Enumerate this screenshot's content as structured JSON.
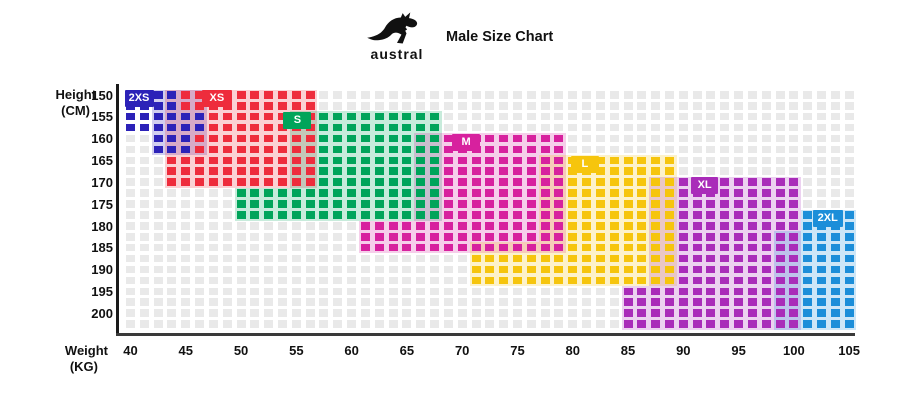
{
  "header": {
    "brand": "austral",
    "title": "Male Size Chart"
  },
  "axes": {
    "y_title_line1": "Height",
    "y_title_line2": "(CM)",
    "x_title_line1": "Weight",
    "x_title_line2": "(KG)",
    "y_ticks": [
      "150",
      "155",
      "160",
      "165",
      "170",
      "175",
      "180",
      "185",
      "190",
      "195",
      "200"
    ],
    "x_ticks": [
      "40",
      "45",
      "50",
      "55",
      "60",
      "65",
      "70",
      "75",
      "80",
      "85",
      "90",
      "95",
      "100",
      "105"
    ]
  },
  "grid": {
    "cols": 53,
    "rows": 22,
    "empty_color": "#e9e9e9",
    "tint_alpha": 0.22
  },
  "chart_data": {
    "type": "heatmap",
    "title": "Male Size Chart",
    "xlabel": "Weight (KG)",
    "ylabel": "Height (CM)",
    "x_range": [
      40,
      105
    ],
    "y_range": [
      150,
      200
    ],
    "legend_position": "inline-labels",
    "grid": "dot-matrix",
    "series": [
      {
        "name": "2XS",
        "color": "#2c22b8",
        "weight_kg": [
          40,
          47
        ],
        "height_cm": [
          150,
          165
        ]
      },
      {
        "name": "XS",
        "color": "#ee2c3c",
        "weight_kg": [
          44,
          57
        ],
        "height_cm": [
          150,
          172
        ]
      },
      {
        "name": "S",
        "color": "#00a45a",
        "weight_kg": [
          50,
          69
        ],
        "height_cm": [
          155,
          180
        ]
      },
      {
        "name": "M",
        "color": "#d7219e",
        "weight_kg": [
          61,
          79
        ],
        "height_cm": [
          160,
          188
        ]
      },
      {
        "name": "L",
        "color": "#f6c50d",
        "weight_kg": [
          71,
          90
        ],
        "height_cm": [
          165,
          195
        ]
      },
      {
        "name": "XL",
        "color": "#a92cb9",
        "weight_kg": [
          85,
          101
        ],
        "height_cm": [
          170,
          200
        ]
      },
      {
        "name": "2XL",
        "color": "#1c8ed9",
        "weight_kg": [
          101,
          105
        ],
        "height_cm": [
          178,
          200
        ]
      }
    ]
  },
  "sizes": [
    {
      "label": "2XS",
      "color": "#2c22b8",
      "bands": [
        [
          0,
          3,
          0,
          1
        ],
        [
          0,
          5,
          2,
          3
        ],
        [
          2,
          4,
          4,
          5
        ]
      ],
      "bg_bands": [
        [
          2,
          5,
          0,
          5
        ]
      ],
      "label_at": [
        0,
        0
      ],
      "label_w": 29
    },
    {
      "label": "XS",
      "color": "#ee2c3c",
      "bands": [
        [
          4,
          13,
          0,
          1
        ],
        [
          6,
          13,
          2,
          3
        ],
        [
          5,
          13,
          4,
          5
        ],
        [
          3,
          13,
          6,
          8
        ]
      ],
      "bg_bands": [
        [
          3,
          13,
          0,
          8
        ]
      ],
      "label_at": [
        5.6,
        0
      ],
      "label_w": 30
    },
    {
      "label": "S",
      "color": "#00a45a",
      "bands": [
        [
          14,
          22,
          2,
          8
        ],
        [
          8,
          22,
          9,
          11
        ]
      ],
      "bg_bands": [
        [
          12,
          22,
          2,
          8
        ],
        [
          8,
          22,
          9,
          11
        ]
      ],
      "label_at": [
        11.5,
        2
      ],
      "label_w": 28
    },
    {
      "label": "M",
      "color": "#d7219e",
      "bands": [
        [
          23,
          31,
          4,
          11
        ],
        [
          17,
          31,
          12,
          14
        ]
      ],
      "bg_bands": [
        [
          21,
          31,
          4,
          11
        ],
        [
          17,
          31,
          12,
          14
        ]
      ],
      "label_at": [
        23.7,
        4
      ],
      "label_w": 28
    },
    {
      "label": "L",
      "color": "#f6c50d",
      "bands": [
        [
          32,
          39,
          6,
          14
        ],
        [
          25,
          39,
          15,
          17
        ]
      ],
      "bg_bands": [
        [
          30,
          39,
          6,
          13
        ],
        [
          25,
          39,
          14,
          17
        ]
      ],
      "label_at": [
        32.3,
        6
      ],
      "label_w": 28
    },
    {
      "label": "XL",
      "color": "#a92cb9",
      "bands": [
        [
          40,
          48,
          8,
          17
        ],
        [
          36,
          48,
          18,
          21
        ]
      ],
      "bg_bands": [
        [
          38,
          48,
          8,
          17
        ],
        [
          36,
          48,
          18,
          21
        ]
      ],
      "label_at": [
        41,
        8
      ],
      "label_w": 27
    },
    {
      "label": "2XL",
      "color": "#1c8ed9",
      "bands": [
        [
          49,
          52,
          11,
          21
        ]
      ],
      "bg_bands": [
        [
          49,
          52,
          11,
          12
        ],
        [
          47,
          52,
          13,
          21
        ]
      ],
      "label_at": [
        49.8,
        11
      ],
      "label_w": 30
    }
  ]
}
